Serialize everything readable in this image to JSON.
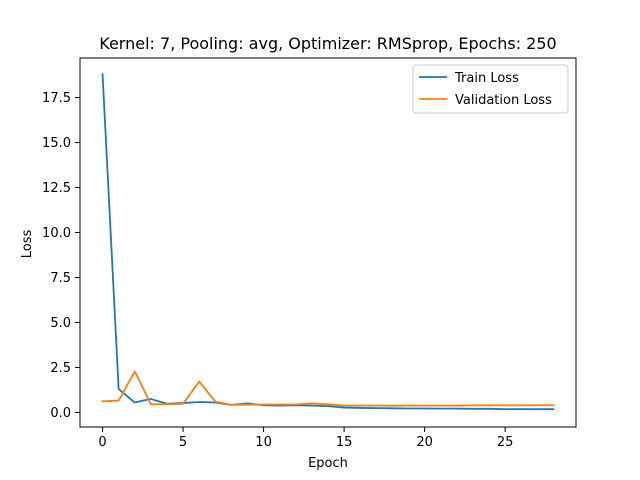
{
  "chart_data": {
    "type": "line",
    "title": "Kernel: 7, Pooling: avg, Optimizer: RMSprop, Epochs: 250",
    "xlabel": "Epoch",
    "ylabel": "Loss",
    "xlim": [
      -1.4,
      29.4
    ],
    "ylim": [
      -0.81,
      19.7
    ],
    "xticks": [
      0,
      5,
      10,
      15,
      20,
      25
    ],
    "yticks": [
      0.0,
      2.5,
      5.0,
      7.5,
      10.0,
      12.5,
      15.0,
      17.5
    ],
    "ytick_labels": [
      "0.0",
      "2.5",
      "5.0",
      "7.5",
      "10.0",
      "12.5",
      "15.0",
      "17.5"
    ],
    "grid": false,
    "legend": "top-right",
    "series": [
      {
        "name": "Train Loss",
        "color": "#1f77b4",
        "x": [
          0,
          1,
          2,
          3,
          4,
          5,
          6,
          7,
          8,
          9,
          10,
          11,
          12,
          13,
          14,
          15,
          16,
          17,
          18,
          19,
          20,
          21,
          22,
          23,
          24,
          25,
          26,
          27,
          28
        ],
        "y": [
          18.8,
          1.3,
          0.55,
          0.75,
          0.48,
          0.52,
          0.58,
          0.55,
          0.42,
          0.5,
          0.4,
          0.38,
          0.4,
          0.38,
          0.35,
          0.27,
          0.25,
          0.24,
          0.23,
          0.22,
          0.22,
          0.21,
          0.21,
          0.2,
          0.2,
          0.18,
          0.18,
          0.18,
          0.18
        ]
      },
      {
        "name": "Validation Loss",
        "color": "#ff7f0e",
        "x": [
          0,
          1,
          2,
          3,
          4,
          5,
          6,
          7,
          8,
          9,
          10,
          11,
          12,
          13,
          14,
          15,
          16,
          17,
          18,
          19,
          20,
          21,
          22,
          23,
          24,
          25,
          26,
          27,
          28
        ],
        "y": [
          0.62,
          0.66,
          2.28,
          0.45,
          0.45,
          0.48,
          1.72,
          0.6,
          0.42,
          0.43,
          0.44,
          0.44,
          0.44,
          0.5,
          0.45,
          0.38,
          0.38,
          0.38,
          0.37,
          0.38,
          0.38,
          0.38,
          0.38,
          0.39,
          0.4,
          0.39,
          0.39,
          0.4,
          0.4
        ]
      }
    ]
  }
}
